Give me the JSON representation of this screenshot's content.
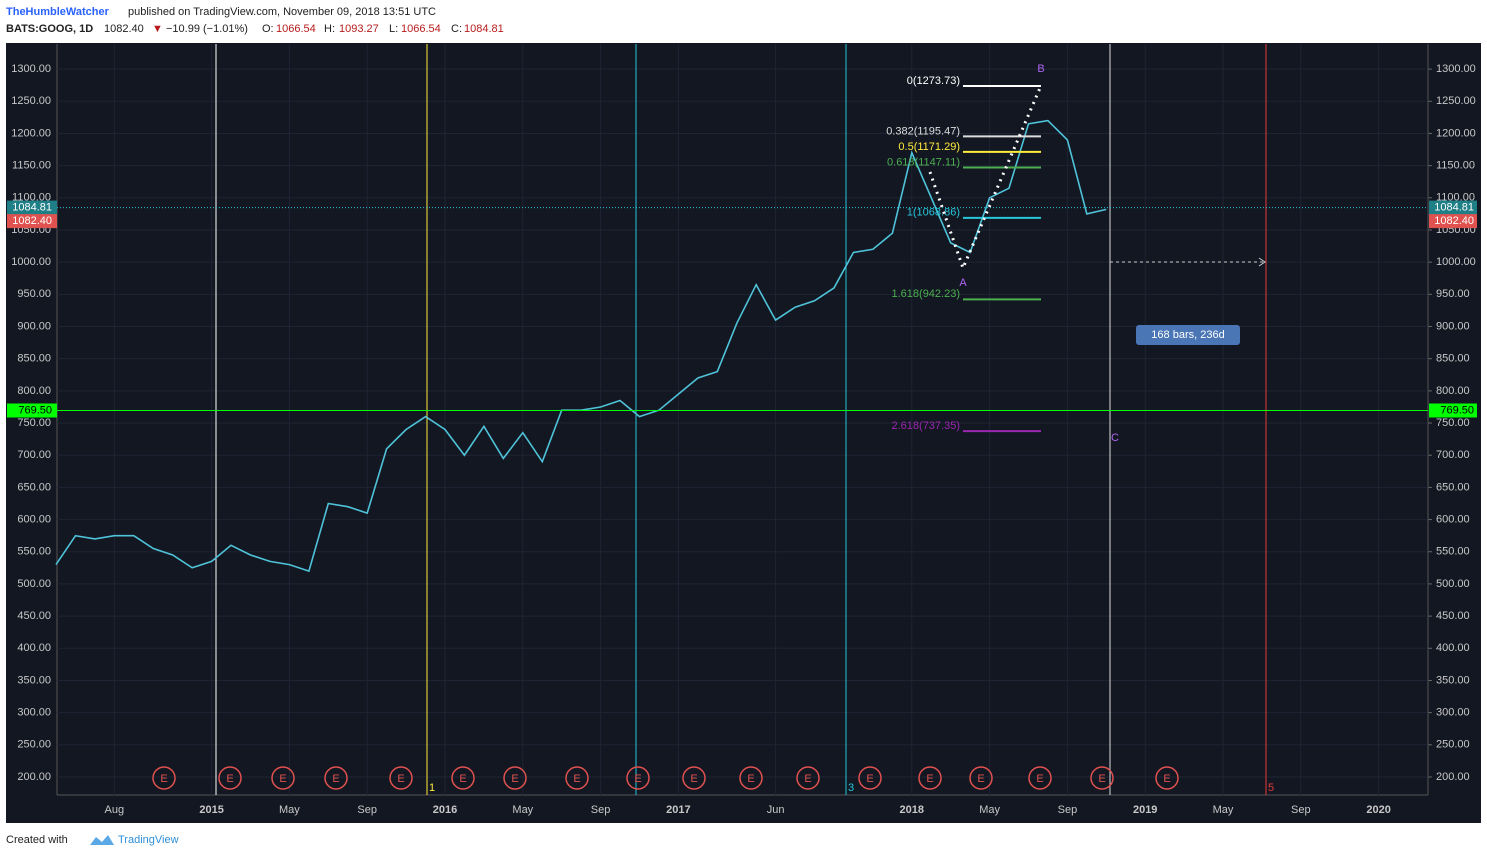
{
  "header": {
    "author": "TheHumbleWatcher",
    "published": "published on TradingView.com, November 09, 2018 13:51 UTC",
    "symbol": "BATS:GOOG, 1D",
    "last": "1082.40",
    "arrow": "▼",
    "change": "−10.99 (−1.01%)",
    "o_label": "O:",
    "o": "1066.54",
    "h_label": "H:",
    "h": "1093.27",
    "l_label": "L:",
    "l": "1066.54",
    "c_label": "C:",
    "c": "1084.81"
  },
  "chart_data": {
    "type": "line",
    "color": "#4fc3d9",
    "categories": [
      null,
      null,
      null,
      "Aug",
      null,
      null,
      null,
      null,
      "2015",
      null,
      null,
      null,
      "May",
      null,
      null,
      null,
      "Sep",
      null,
      null,
      null,
      "2016",
      null,
      null,
      null,
      "May",
      null,
      null,
      null,
      "Sep",
      null,
      null,
      null,
      "2017",
      null,
      null,
      null,
      null,
      "Jun",
      null,
      null,
      null,
      null,
      null,
      null,
      "2018",
      null,
      null,
      null,
      "May",
      null,
      null,
      null,
      "Sep",
      null,
      null,
      null,
      "2019",
      null,
      null,
      null,
      "May",
      null,
      null,
      null,
      "Sep",
      null,
      null,
      null,
      "2020",
      null
    ],
    "values": [
      530,
      575,
      570,
      575,
      575,
      555,
      545,
      525,
      535,
      560,
      545,
      535,
      530,
      520,
      625,
      620,
      610,
      710,
      740,
      760,
      740,
      700,
      745,
      695,
      735,
      690,
      770,
      770,
      775,
      785,
      760,
      770,
      795,
      820,
      830,
      905,
      965,
      910,
      930,
      940,
      960,
      1015,
      1020,
      1045,
      1170,
      1100,
      1030,
      1015,
      1100,
      1115,
      1215,
      1220,
      1190,
      1075,
      1082,
      null,
      null,
      null,
      null,
      null,
      null,
      null,
      null,
      null,
      null,
      null,
      null,
      null,
      null,
      null
    ],
    "ylim": [
      172,
      1339
    ],
    "yticks": [
      {
        "value": 200,
        "label": "200.00"
      },
      {
        "value": 250,
        "label": "250.00"
      },
      {
        "value": 300,
        "label": "300.00"
      },
      {
        "value": 350,
        "label": "350.00"
      },
      {
        "value": 400,
        "label": "400.00"
      },
      {
        "value": 450,
        "label": "450.00"
      },
      {
        "value": 500,
        "label": "500.00"
      },
      {
        "value": 550,
        "label": "550.00"
      },
      {
        "value": 600,
        "label": "600.00"
      },
      {
        "value": 650,
        "label": "650.00"
      },
      {
        "value": 700,
        "label": "700.00"
      },
      {
        "value": 750,
        "label": "750.00"
      },
      {
        "value": 800,
        "label": "800.00"
      },
      {
        "value": 850,
        "label": "850.00"
      },
      {
        "value": 900,
        "label": "900.00"
      },
      {
        "value": 950,
        "label": "950.00"
      },
      {
        "value": 1000,
        "label": "1000.00"
      },
      {
        "value": 1050,
        "label": "1050.00"
      },
      {
        "value": 1100,
        "label": "1100.00"
      },
      {
        "value": 1150,
        "label": "1150.00"
      },
      {
        "value": 1200,
        "label": "1200.00"
      },
      {
        "value": 1250,
        "label": "1250.00"
      },
      {
        "value": 1300,
        "label": "1300.00"
      }
    ],
    "grid": true,
    "price_tags": [
      {
        "value": 1084.81,
        "label": "1084.81",
        "color": "#1f7f86"
      },
      {
        "value": 1082.4,
        "label": "1082.40",
        "color": "#e0524f"
      },
      {
        "value": 769.5,
        "label": "769.50",
        "color": "#00ff00"
      }
    ],
    "fib_levels": [
      {
        "value": 1273.73,
        "label": "0(1273.73)",
        "color": "#ffffff"
      },
      {
        "value": 1195.47,
        "label": "0.382(1195.47)",
        "color": "#dddddd"
      },
      {
        "value": 1171.29,
        "label": "0.5(1171.29)",
        "color": "#ffeb3b"
      },
      {
        "value": 1147.11,
        "label": "0.618(1147.11)",
        "color": "#4caf50"
      },
      {
        "value": 1068.86,
        "label": "1(1068.86)",
        "color": "#26c6da"
      },
      {
        "value": 942.23,
        "label": "1.618(942.23)",
        "color": "#4caf50"
      },
      {
        "value": 737.35,
        "label": "2.618(737.35)",
        "color": "#9c27b0"
      }
    ],
    "waves": [
      "A",
      "B",
      "C"
    ],
    "cycle_labels": [
      "1",
      "3",
      "5"
    ],
    "measure": "168 bars, 236d",
    "earnings": [
      "E",
      "E",
      "E",
      "E",
      "E",
      "E",
      "E",
      "E",
      "E",
      "E",
      "E",
      "E",
      "E",
      "E",
      "E",
      "E",
      "E",
      "E"
    ]
  },
  "footer": {
    "created": "Created with",
    "brand": "TradingView"
  }
}
